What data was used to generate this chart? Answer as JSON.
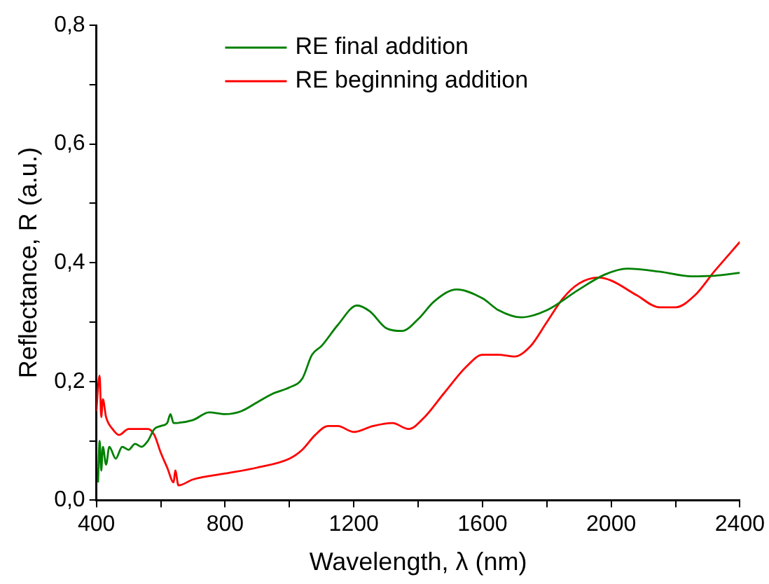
{
  "chart_data": {
    "type": "line",
    "xlabel": "Wavelength, λ (nm)",
    "ylabel": "Reflectance, R (a.u.)",
    "xlim": [
      400,
      2400
    ],
    "ylim": [
      0,
      0.8
    ],
    "xticks": [
      400,
      {
        "value": 600,
        "label": null
      },
      800,
      {
        "value": 1000,
        "label": null
      },
      1200,
      {
        "value": 1400,
        "label": null
      },
      1600,
      {
        "value": 1800,
        "label": null
      },
      2000,
      {
        "value": 2200,
        "label": null
      },
      2400
    ],
    "yticks": [
      {
        "value": 0,
        "label": "0,0"
      },
      {
        "value": 0.1,
        "label": null
      },
      {
        "value": 0.2,
        "label": "0,2"
      },
      {
        "value": 0.3,
        "label": null
      },
      {
        "value": 0.4,
        "label": "0,4"
      },
      {
        "value": 0.5,
        "label": null
      },
      {
        "value": 0.6,
        "label": "0,6"
      },
      {
        "value": 0.7,
        "label": null
      },
      {
        "value": 0.8,
        "label": "0,8"
      }
    ],
    "grid": false,
    "legend": "top",
    "marker": "none",
    "line_style": "solid",
    "series": [
      {
        "name": "RE final addition",
        "color": "#008000",
        "x": [
          405,
          410,
          415,
          420,
          430,
          440,
          460,
          480,
          500,
          520,
          540,
          560,
          580,
          600,
          620,
          630,
          640,
          700,
          750,
          800,
          850,
          900,
          950,
          1000,
          1040,
          1070,
          1100,
          1150,
          1210,
          1250,
          1300,
          1350,
          1400,
          1450,
          1520,
          1600,
          1650,
          1720,
          1800,
          1900,
          1980,
          2050,
          2150,
          2250,
          2320,
          2400
        ],
        "values": [
          0.03,
          0.1,
          0.05,
          0.09,
          0.06,
          0.09,
          0.07,
          0.09,
          0.085,
          0.095,
          0.09,
          0.1,
          0.12,
          0.125,
          0.13,
          0.145,
          0.13,
          0.135,
          0.148,
          0.145,
          0.15,
          0.165,
          0.18,
          0.19,
          0.205,
          0.245,
          0.26,
          0.295,
          0.328,
          0.318,
          0.29,
          0.285,
          0.305,
          0.335,
          0.355,
          0.34,
          0.32,
          0.308,
          0.32,
          0.355,
          0.38,
          0.39,
          0.385,
          0.377,
          0.378,
          0.383
        ]
      },
      {
        "name": "RE beginning addition",
        "color": "#ff0000",
        "x": [
          400,
          405,
          410,
          415,
          420,
          430,
          450,
          470,
          500,
          530,
          560,
          580,
          600,
          620,
          640,
          645,
          655,
          700,
          800,
          900,
          1000,
          1040,
          1080,
          1120,
          1150,
          1200,
          1260,
          1320,
          1370,
          1420,
          1480,
          1550,
          1600,
          1650,
          1700,
          1750,
          1800,
          1850,
          1900,
          1960,
          2000,
          2080,
          2150,
          2200,
          2260,
          2320,
          2400
        ],
        "values": [
          0.15,
          0.19,
          0.21,
          0.14,
          0.17,
          0.14,
          0.12,
          0.11,
          0.12,
          0.12,
          0.12,
          0.11,
          0.08,
          0.055,
          0.03,
          0.05,
          0.025,
          0.035,
          0.045,
          0.055,
          0.07,
          0.085,
          0.11,
          0.125,
          0.125,
          0.115,
          0.125,
          0.13,
          0.12,
          0.14,
          0.18,
          0.225,
          0.245,
          0.245,
          0.242,
          0.26,
          0.3,
          0.34,
          0.365,
          0.375,
          0.37,
          0.345,
          0.325,
          0.325,
          0.345,
          0.385,
          0.435
        ]
      }
    ]
  }
}
